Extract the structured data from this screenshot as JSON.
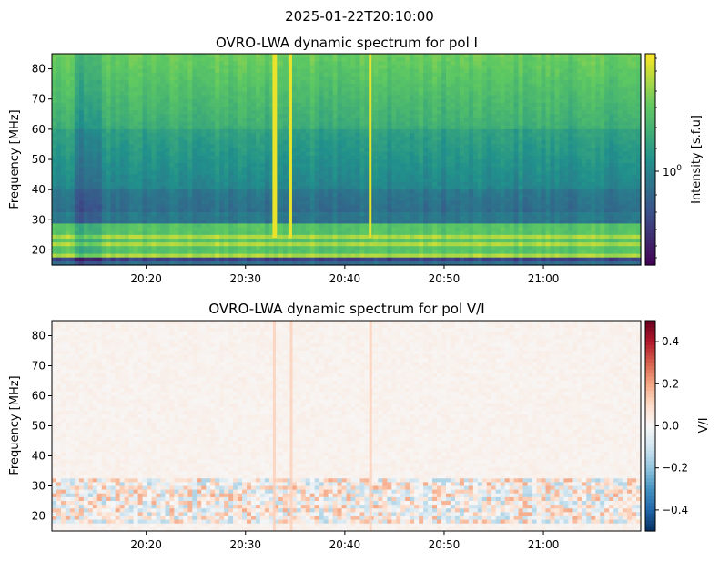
{
  "figure": {
    "suptitle": "2025-01-22T20:10:00"
  },
  "chart_data": [
    {
      "type": "heatmap",
      "title": "OVRO-LWA dynamic spectrum for pol I",
      "xlabel": "",
      "ylabel": "Frequency [MHz]",
      "x_ticks": [
        "20:20",
        "20:30",
        "20:40",
        "20:50",
        "21:00"
      ],
      "x_tick_minutes": [
        20.0,
        30.0,
        40.0,
        50.0,
        60.0
      ],
      "xlim_minutes": [
        10.5,
        69.8
      ],
      "xlim_labels": [
        "20:10:30",
        "21:09:48"
      ],
      "y_ticks": [
        20,
        30,
        40,
        50,
        60,
        70,
        80
      ],
      "ylim": [
        15,
        85
      ],
      "colorbar": {
        "label": "Intensity [s.f.u]",
        "scale": "log",
        "ticks": [
          "10^0"
        ],
        "tick_base": "10",
        "tick_exp": "0",
        "colormap": "viridis",
        "colors": [
          "#440154",
          "#3b528b",
          "#21918c",
          "#5ec962",
          "#fde725"
        ]
      },
      "features": {
        "background_level": 0.45,
        "low_freq_bands_mhz": [
          [
            18,
            28.5
          ]
        ],
        "vertical_bursts_minutes": [
          32.9,
          34.6,
          42.6
        ],
        "burst_freq_range_mhz": [
          24,
          85
        ]
      }
    },
    {
      "type": "heatmap",
      "title": "OVRO-LWA dynamic spectrum for pol V/I",
      "xlabel": "",
      "ylabel": "Frequency [MHz]",
      "x_ticks": [
        "20:20",
        "20:30",
        "20:40",
        "20:50",
        "21:00"
      ],
      "x_tick_minutes": [
        20.0,
        30.0,
        40.0,
        50.0,
        60.0
      ],
      "xlim_minutes": [
        10.5,
        69.8
      ],
      "y_ticks": [
        20,
        30,
        40,
        50,
        60,
        70,
        80
      ],
      "ylim": [
        15,
        85
      ],
      "colorbar": {
        "label": "V/I",
        "scale": "linear",
        "range": [
          -0.5,
          0.5
        ],
        "ticks": [
          "0.4",
          "0.2",
          "0.0",
          "−0.2",
          "−0.4"
        ],
        "tick_values": [
          0.4,
          0.2,
          0.0,
          -0.2,
          -0.4
        ],
        "colormap": "RdBu_r",
        "colors": [
          "#053061",
          "#2166ac",
          "#4393c3",
          "#92c5de",
          "#d1e5f0",
          "#f7f7f7",
          "#fddbc7",
          "#f4a582",
          "#d6604d",
          "#b2182b",
          "#67001f"
        ]
      },
      "features": {
        "background_level": 0.02,
        "low_freq_band_mhz": [
          18,
          32
        ],
        "vertical_bursts_minutes": [
          32.9,
          34.6,
          42.6
        ]
      }
    }
  ]
}
